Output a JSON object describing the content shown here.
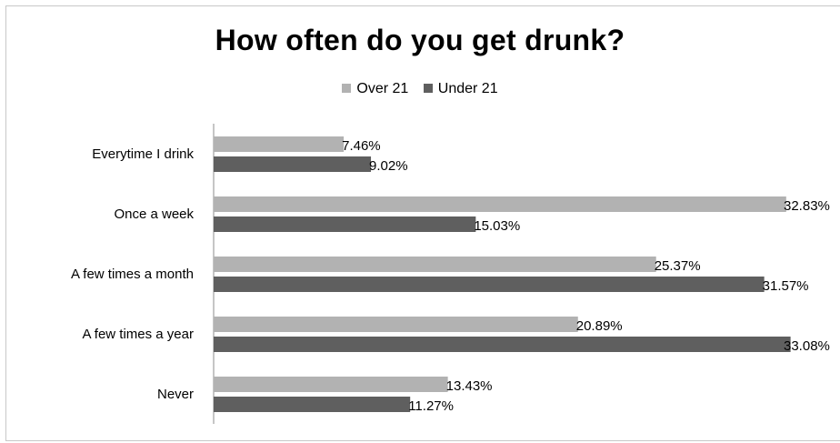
{
  "chart_data": {
    "type": "bar",
    "orientation": "horizontal",
    "title": "How often do you get drunk?",
    "categories": [
      "Everytime I drink",
      "Once a week",
      "A few times a month",
      "A few times a year",
      "Never"
    ],
    "series": [
      {
        "name": "Over 21",
        "color": "#b2b2b2",
        "values": [
          7.46,
          32.83,
          25.37,
          20.89,
          13.43
        ],
        "labels": [
          "7.46%",
          "32.83%",
          "25.37%",
          "20.89%",
          "13.43%"
        ]
      },
      {
        "name": "Under 21",
        "color": "#5f5f5f",
        "values": [
          9.02,
          15.03,
          31.57,
          33.08,
          11.27
        ],
        "labels": [
          "9.02%",
          "15.03%",
          "31.57%",
          "33.08%",
          "11.27%"
        ]
      }
    ],
    "xlim": [
      0,
      33.1
    ],
    "grid": false,
    "legend": "top"
  }
}
